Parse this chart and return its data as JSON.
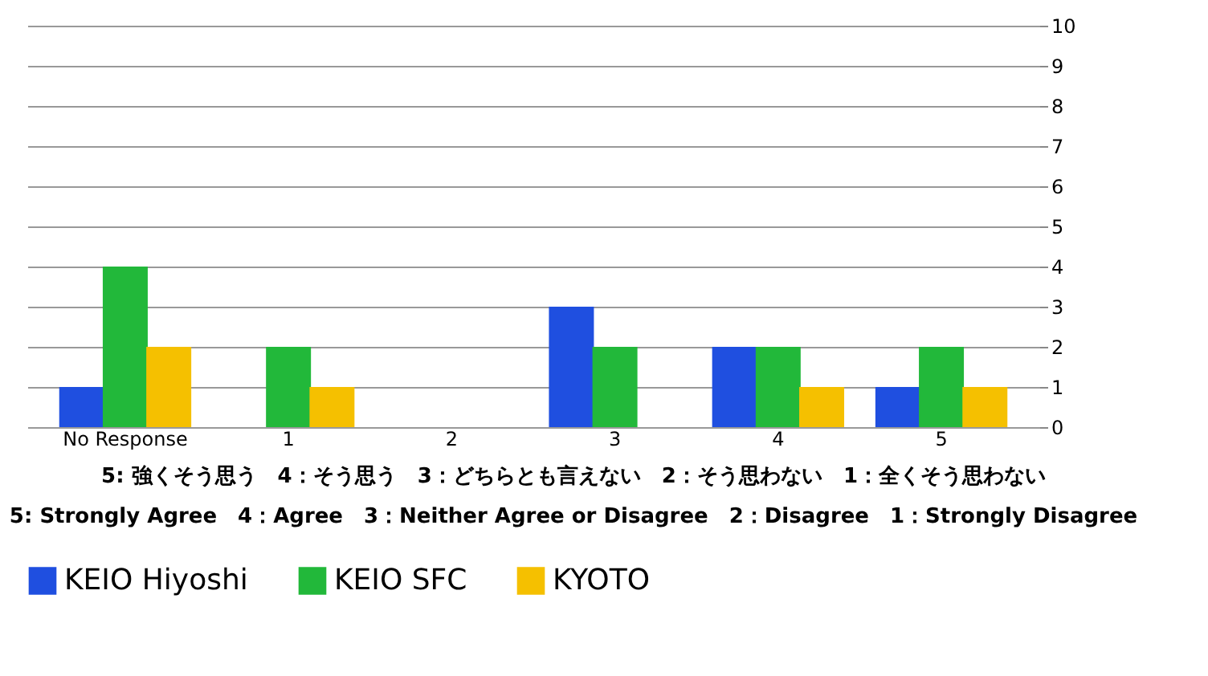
{
  "chart_data": {
    "type": "bar",
    "categories": [
      "No Response",
      "1",
      "2",
      "3",
      "4",
      "5"
    ],
    "series": [
      {
        "name": "KEIO Hiyoshi",
        "color": "#1f4fe0",
        "values": [
          1,
          0,
          0,
          3,
          2,
          1
        ]
      },
      {
        "name": "KEIO SFC",
        "color": "#22b83a",
        "values": [
          4,
          2,
          0,
          2,
          2,
          2
        ]
      },
      {
        "name": "KYOTO",
        "color": "#f5c000",
        "values": [
          2,
          1,
          0,
          0,
          1,
          1
        ]
      }
    ],
    "ylim": [
      0,
      10
    ],
    "yticks": [
      0,
      1,
      2,
      3,
      4,
      5,
      6,
      7,
      8,
      9,
      10
    ],
    "grid": "y",
    "legend": "bottom",
    "annotations": [
      "5: 強くそう思う　4：そう思う　3：どちらとも言えない　2：そう思わない　1：全くそう思わない",
      "5: Strongly Agree　4：Agree　3：Neither Agree or Disagree　2：Disagree　1：Strongly Disagree"
    ]
  }
}
